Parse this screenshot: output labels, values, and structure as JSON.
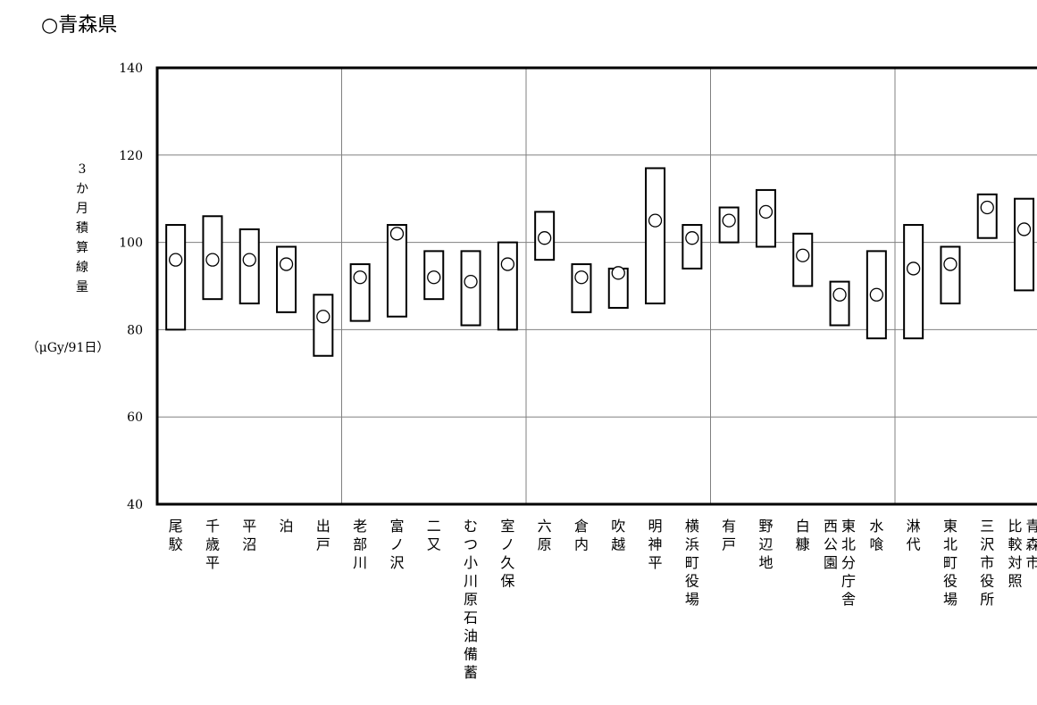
{
  "title": "○青森県",
  "chart_data": {
    "type": "range-bar",
    "title": "○青森県",
    "ylabel_lines": [
      "3",
      "か",
      "月",
      "積",
      "算",
      "線",
      "量"
    ],
    "yunit": "（μGy/91日）",
    "ylim": [
      40,
      140
    ],
    "yticks": [
      40,
      60,
      80,
      100,
      120,
      140
    ],
    "grid": true,
    "categories": [
      "尾駮",
      "千歳平",
      "平沼",
      "泊",
      "出戸",
      "老部川",
      "富ノ沢",
      "二又",
      "むつ小川原石油備蓄",
      "室ノ久保",
      "六原",
      "倉内",
      "吹越",
      "明神平",
      "横浜町役場",
      "有戸",
      "野辺地",
      "白糠",
      "西公園 東北分庁舎",
      "水喰",
      "淋代",
      "東北町役場",
      "三沢市役所",
      "比較対照 青森市"
    ],
    "min": [
      80,
      87,
      86,
      84,
      74,
      82,
      83,
      87,
      81,
      80,
      96,
      84,
      85,
      86,
      94,
      100,
      99,
      90,
      81,
      78,
      78,
      86,
      101,
      89
    ],
    "max": [
      104,
      106,
      103,
      99,
      88,
      95,
      104,
      98,
      98,
      100,
      107,
      95,
      94,
      117,
      104,
      108,
      112,
      102,
      91,
      98,
      104,
      99,
      111,
      110
    ],
    "value": [
      96,
      96,
      96,
      95,
      83,
      92,
      102,
      92,
      91,
      95,
      101,
      92,
      93,
      105,
      101,
      105,
      107,
      97,
      88,
      88,
      94,
      95,
      108,
      103
    ],
    "group_separators_after": [
      4,
      9,
      14,
      19
    ]
  }
}
